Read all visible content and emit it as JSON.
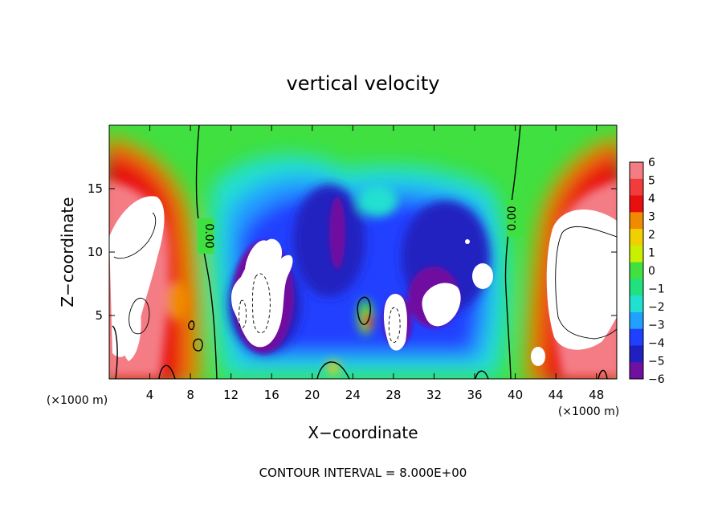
{
  "chart_data": {
    "type": "heatmap",
    "title": "vertical velocity",
    "xlabel": "X−coordinate",
    "ylabel": "Z−coordinate",
    "x_unit_left": "(×1000 m)",
    "x_unit_right": "(×1000 m)",
    "xlim": [
      0,
      50
    ],
    "ylim": [
      0,
      20
    ],
    "x_ticks": [
      4,
      8,
      12,
      16,
      20,
      24,
      28,
      32,
      36,
      40,
      44,
      48
    ],
    "y_ticks": [
      5,
      10,
      15
    ],
    "colorbar": {
      "min": -6,
      "max": 6,
      "labels": [
        "6",
        "5",
        "4",
        "3",
        "2",
        "1",
        "0",
        "−1",
        "−2",
        "−3",
        "−4",
        "−5",
        "−6"
      ],
      "colors": [
        "#f47d85",
        "#f23b3b",
        "#e80f0f",
        "#f08a00",
        "#f0d000",
        "#c8f000",
        "#3fe03f",
        "#20e080",
        "#20e0d0",
        "#20a0ff",
        "#2040ff",
        "#2020c0",
        "#7010a0"
      ]
    },
    "contour_labels": [
      "0.00",
      "0.00"
    ],
    "footer": "CONTOUR INTERVAL = 8.000E+00"
  }
}
